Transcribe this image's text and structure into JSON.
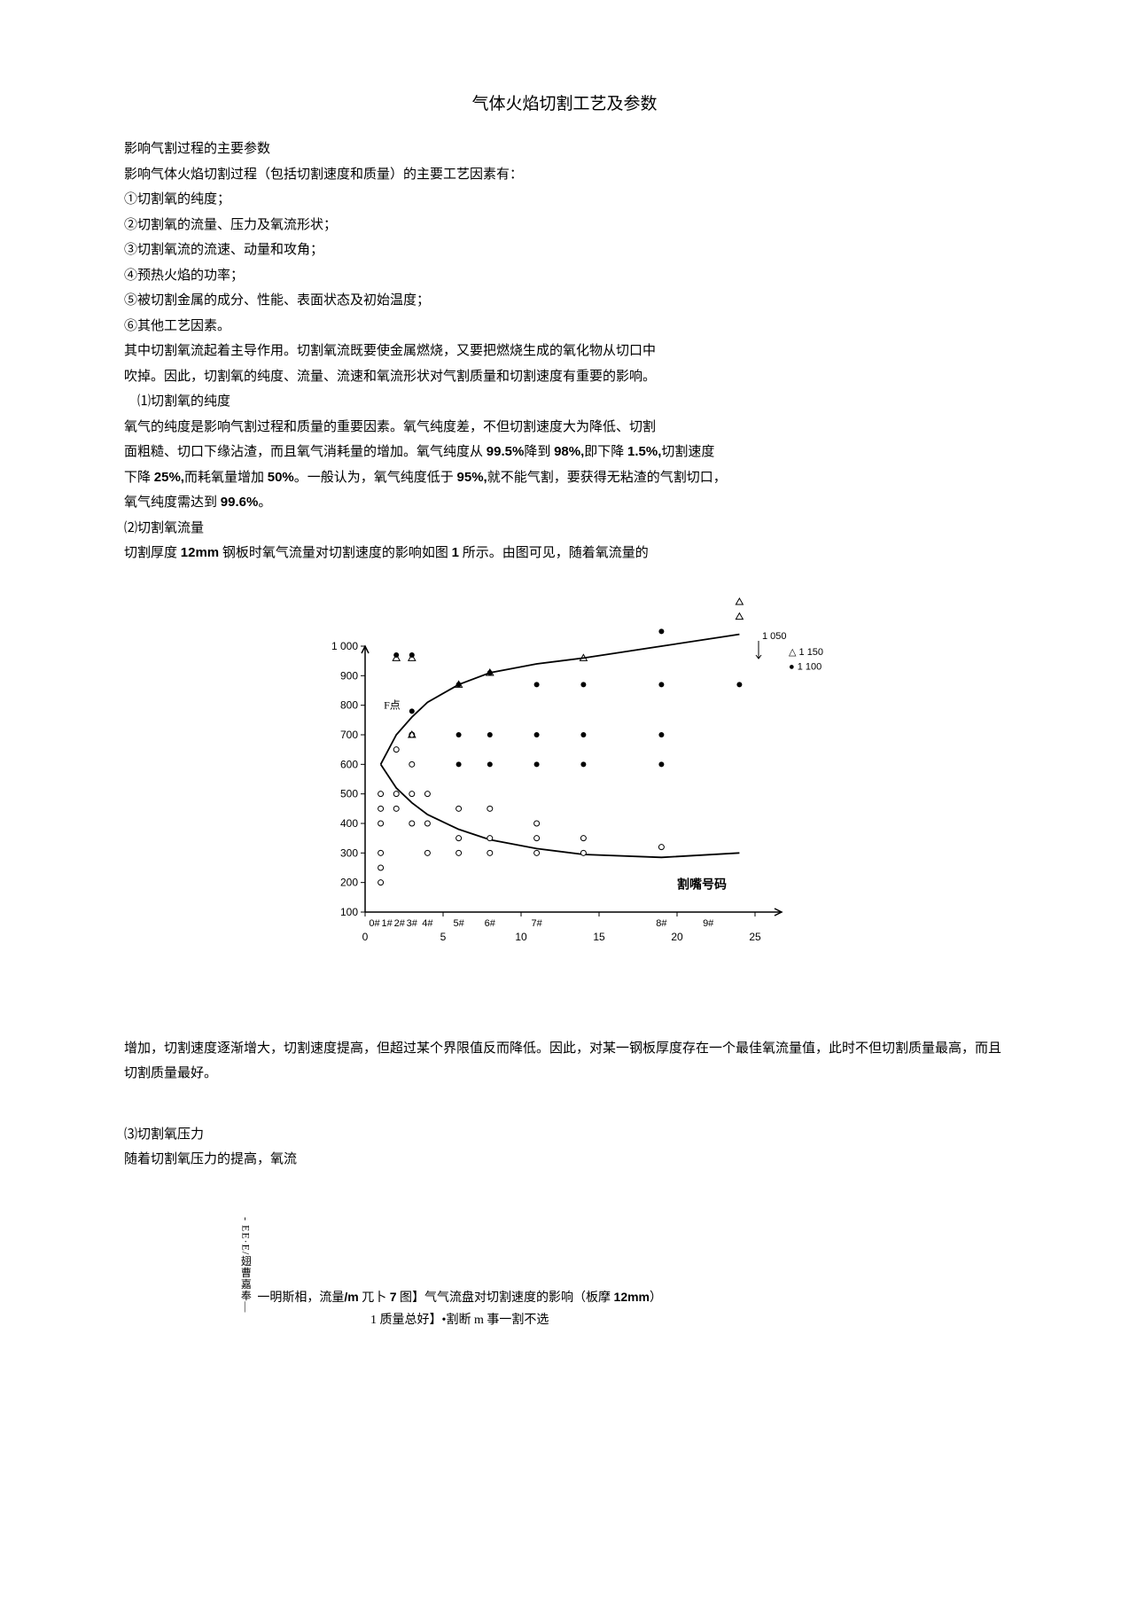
{
  "title": "气体火焰切割工艺及参数",
  "p1": "影响气割过程的主要参数",
  "p2": "影响气体火焰切割过程（包括切割速度和质量）的主要工艺因素有：",
  "li1": "①切割氧的纯度；",
  "li2": "②切割氧的流量、压力及氧流形状；",
  "li3": "③切割氧流的流速、动量和攻角；",
  "li4": "④预热火焰的功率；",
  "li5": "⑤被切割金属的成分、性能、表面状态及初始温度；",
  "li6": "⑥其他工艺因素。",
  "p3": "其中切割氧流起着主导作用。切割氧流既要使金属燃烧，又要把燃烧生成的氧化物从切口中",
  "p4": "吹掉。因此，切割氧的纯度、流量、流速和氧流形状对气割质量和切割速度有重要的影响。",
  "h1": "⑴切割氧的纯度",
  "p5": "氧气的纯度是影响气割过程和质量的重要因素。氧气纯度差，不但切割速度大为降低、切割",
  "p6a": "面粗糙、切口下缘沾渣，而且氧气消耗量的增加。氧气纯度从 ",
  "p6b": "99.5%",
  "p6c": "降到 ",
  "p6d": "98%,",
  "p6e": "即下降 ",
  "p6f": "1.5%,",
  "p6g": "切割速度",
  "p7a": "下降 ",
  "p7b": "25%,",
  "p7c": "而耗氧量增加 ",
  "p7d": "50%",
  "p7e": "。一般认为，氧气纯度低于 ",
  "p7f": "95%,",
  "p7g": "就不能气割，要获得无粘渣的气割切口，",
  "p8a": "氧气纯度需达到 ",
  "p8b": "99.6%",
  "p8c": "。",
  "h2": "⑵切割氧流量",
  "p9a": "切割厚度 ",
  "p9b": "12mm",
  "p9c": " 钢板时氧气流量对切割速度的影响如图 ",
  "p9d": "1",
  "p9e": " 所示。由图可见，随着氧流量的",
  "chart": {
    "y_ticks": [
      100,
      200,
      300,
      400,
      500,
      600,
      700,
      800,
      900,
      1000
    ],
    "y_max_label": "1 000",
    "x_ticks": [
      0,
      5,
      10,
      15,
      20,
      25
    ],
    "nozzle_labels": [
      "0#",
      "1#",
      "2#",
      "3#",
      "4#",
      "5#",
      "6#",
      "7#",
      "8#",
      "9#"
    ],
    "f_label": "F点",
    "legend_label": "割嘴号码",
    "extra_labels": [
      "1 050",
      "1 150",
      "1 100"
    ],
    "axis_color": "#000000",
    "bg": "#ffffff",
    "upper_curve": [
      [
        1,
        600
      ],
      [
        2,
        700
      ],
      [
        3,
        760
      ],
      [
        4,
        810
      ],
      [
        6,
        870
      ],
      [
        8,
        910
      ],
      [
        11,
        940
      ],
      [
        14,
        960
      ],
      [
        19,
        1000
      ],
      [
        24,
        1040
      ]
    ],
    "lower_curve": [
      [
        1,
        600
      ],
      [
        2,
        520
      ],
      [
        3,
        470
      ],
      [
        4,
        430
      ],
      [
        6,
        380
      ],
      [
        8,
        345
      ],
      [
        11,
        315
      ],
      [
        14,
        295
      ],
      [
        19,
        285
      ],
      [
        24,
        300
      ]
    ],
    "points_open": [
      [
        1,
        500
      ],
      [
        1,
        450
      ],
      [
        1,
        400
      ],
      [
        1,
        300
      ],
      [
        1,
        250
      ],
      [
        1,
        200
      ],
      [
        2,
        650
      ],
      [
        2,
        500
      ],
      [
        2,
        450
      ],
      [
        3,
        700
      ],
      [
        3,
        600
      ],
      [
        3,
        500
      ],
      [
        3,
        400
      ],
      [
        4,
        500
      ],
      [
        4,
        400
      ],
      [
        4,
        300
      ],
      [
        6,
        450
      ],
      [
        6,
        350
      ],
      [
        6,
        300
      ],
      [
        8,
        450
      ],
      [
        8,
        350
      ],
      [
        8,
        300
      ],
      [
        11,
        400
      ],
      [
        11,
        350
      ],
      [
        11,
        300
      ],
      [
        14,
        350
      ],
      [
        14,
        300
      ],
      [
        19,
        320
      ]
    ],
    "points_solid": [
      [
        2,
        970
      ],
      [
        3,
        970
      ],
      [
        3,
        780
      ],
      [
        6,
        870
      ],
      [
        6,
        700
      ],
      [
        6,
        600
      ],
      [
        8,
        910
      ],
      [
        8,
        700
      ],
      [
        8,
        600
      ],
      [
        11,
        870
      ],
      [
        11,
        700
      ],
      [
        11,
        600
      ],
      [
        14,
        870
      ],
      [
        14,
        700
      ],
      [
        14,
        600
      ],
      [
        19,
        870
      ],
      [
        19,
        700
      ],
      [
        19,
        600
      ],
      [
        19,
        1050
      ],
      [
        24,
        870
      ]
    ],
    "points_tri": [
      [
        2,
        960
      ],
      [
        3,
        960
      ],
      [
        3,
        700
      ],
      [
        6,
        870
      ],
      [
        8,
        910
      ],
      [
        14,
        960
      ],
      [
        24,
        1150
      ],
      [
        24,
        1100
      ]
    ]
  },
  "p10": "增加，切割速度逐渐增大，切割速度提高，但超过某个界限值反而降低。因此，对某一钢板厚度存在一个最佳氧流量值，此时不但切割质量最高，而且切割质量最好。",
  "h3": "⑶切割氧压力",
  "p11": "随着切割氧压力的提高，氧流",
  "vert": "- EE·E/翅曹嘉奉—",
  "bot1a": "一明斯相，流量",
  "bot1b": "/m",
  "bot1c": " 兀卜 ",
  "bot1d": "7",
  "bot1e": " 图】气气流盘对切割速度的影响（板摩 ",
  "bot1f": "12mm",
  "bot1g": "）",
  "bot2": "1 质量总好】•割断 m 事一割不选"
}
